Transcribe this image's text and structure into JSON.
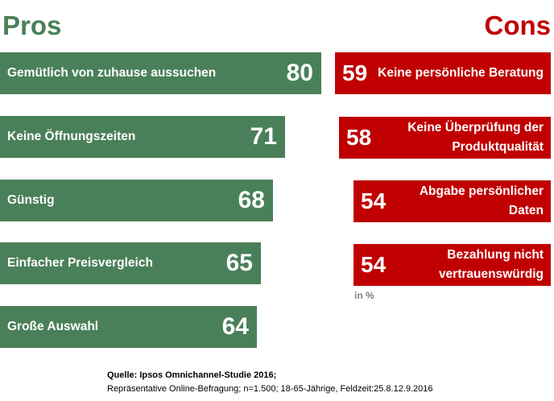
{
  "chart_data": {
    "type": "bar",
    "orientation": "horizontal",
    "unit": "in %",
    "pros": {
      "title": "Pros",
      "color": "#4a8059",
      "items": [
        {
          "label": "Gemütlich von zuhause aussuchen",
          "value": 80
        },
        {
          "label": "Keine Öffnungszeiten",
          "value": 71
        },
        {
          "label": "Günstig",
          "value": 68
        },
        {
          "label": "Einfacher Preisvergleich",
          "value": 65
        },
        {
          "label": "Große Auswahl",
          "value": 64
        }
      ]
    },
    "cons": {
      "title": "Cons",
      "color": "#c00000",
      "items": [
        {
          "label": "Keine persönliche Beratung",
          "value": 59
        },
        {
          "label": "Keine Überprüfung der Produktqualität",
          "value": 58
        },
        {
          "label": "Abgabe persönlicher Daten",
          "value": 54
        },
        {
          "label": "Bezahlung nicht vertrauenswürdig",
          "value": 54
        }
      ]
    },
    "source": {
      "title": "Quelle: Ipsos Omnichannel-Studie  2016;",
      "details": "Repräsentative  Online-Befragung; n=1.500; 18-65-Jährige, Feldzeit:25.8.12.9.2016"
    }
  }
}
